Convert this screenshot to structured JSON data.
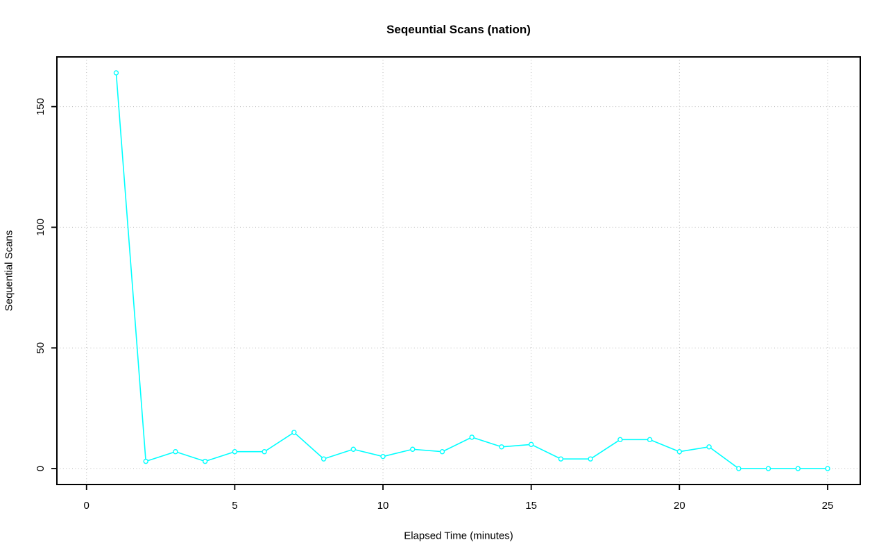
{
  "chart_data": {
    "type": "line",
    "title": "Seqeuntial Scans (nation)",
    "xlabel": "Elapsed Time (minutes)",
    "ylabel": "Sequential Scans",
    "x": [
      1,
      2,
      3,
      4,
      5,
      6,
      7,
      8,
      9,
      10,
      11,
      12,
      13,
      14,
      15,
      16,
      17,
      18,
      19,
      20,
      21,
      22,
      23,
      24,
      25
    ],
    "y": [
      164,
      3,
      7,
      3,
      7,
      7,
      15,
      4,
      8,
      5,
      8,
      7,
      13,
      9,
      10,
      4,
      4,
      12,
      12,
      7,
      9,
      0,
      0,
      0,
      0
    ],
    "x_ticks": [
      0,
      5,
      10,
      15,
      20,
      25
    ],
    "y_ticks": [
      0,
      50,
      100,
      150
    ],
    "xlim": [
      -1.0,
      26.1
    ],
    "ylim": [
      -6.6,
      170.6
    ],
    "grid": true,
    "grid_style": "dotted",
    "legend_position": "none",
    "series_color": "#00ffff",
    "marker": "open-circle",
    "marker_fill": "#ffffff",
    "grid_color": "#b9b9b9",
    "axis_color": "#000000"
  }
}
